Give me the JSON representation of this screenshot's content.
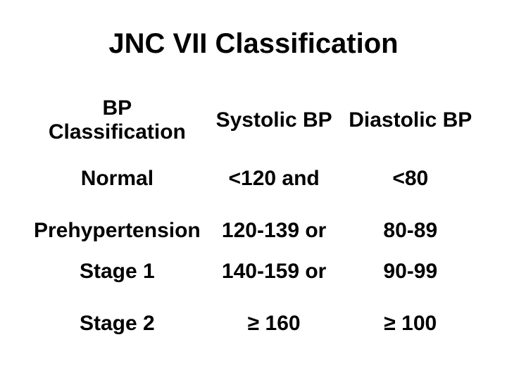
{
  "title": "JNC VII Classification",
  "table": {
    "headers": {
      "classification": "BP Classification",
      "systolic": "Systolic BP",
      "diastolic": "Diastolic BP"
    },
    "rows": [
      {
        "label": "Normal",
        "systolic": "<120 and",
        "diastolic": "<80"
      },
      {
        "label": "Prehypertension",
        "systolic": "120-139 or",
        "diastolic": "80-89"
      },
      {
        "label": "Stage 1",
        "systolic": "140-159 or",
        "diastolic": "90-99"
      },
      {
        "label": "Stage 2",
        "systolic": "≥ 160",
        "diastolic": "≥ 100"
      }
    ]
  },
  "style": {
    "background_color": "#ffffff",
    "text_color": "#000000",
    "title_fontsize": 40,
    "cell_fontsize": 30,
    "font_weight": "bold",
    "font_family": "Arial, Helvetica, sans-serif"
  }
}
